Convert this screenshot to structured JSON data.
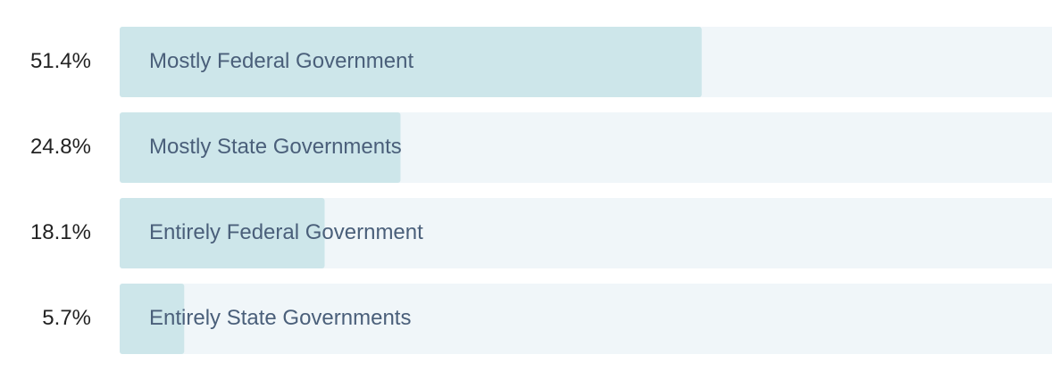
{
  "chart_data": {
    "type": "bar",
    "orientation": "horizontal",
    "categories": [
      "Mostly Federal Government",
      "Mostly State Governments",
      "Entirely Federal Government",
      "Entirely State Governments"
    ],
    "values": [
      51.4,
      24.8,
      18.1,
      5.7
    ],
    "value_labels": [
      "51.4%",
      "24.8%",
      "18.1%",
      "5.7%"
    ],
    "color": "#cde6ea",
    "track_color": "#f0f6f9",
    "xlim": [
      0,
      100
    ]
  }
}
